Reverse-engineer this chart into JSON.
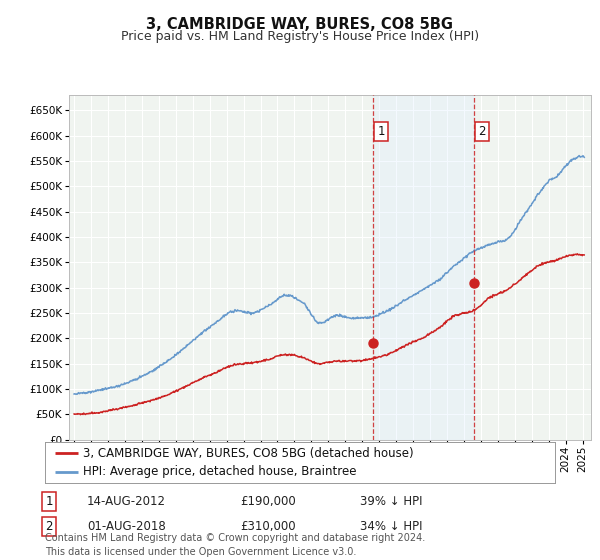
{
  "title": "3, CAMBRIDGE WAY, BURES, CO8 5BG",
  "subtitle": "Price paid vs. HM Land Registry's House Price Index (HPI)",
  "yticks": [
    0,
    50000,
    100000,
    150000,
    200000,
    250000,
    300000,
    350000,
    400000,
    450000,
    500000,
    550000,
    600000,
    650000
  ],
  "ylim": [
    0,
    680000
  ],
  "xlim_start": 1994.7,
  "xlim_end": 2025.5,
  "background_color": "#ffffff",
  "plot_bg_color": "#f0f4f0",
  "grid_color": "#ffffff",
  "hpi_color": "#6699cc",
  "price_color": "#cc2222",
  "annotation_shade_color": "#ddeeff",
  "sale1_x": 2012.617,
  "sale1_y": 190000,
  "sale1_label": "1",
  "sale1_date": "14-AUG-2012",
  "sale1_price": "£190,000",
  "sale1_hpi": "39% ↓ HPI",
  "sale2_x": 2018.583,
  "sale2_y": 310000,
  "sale2_label": "2",
  "sale2_date": "01-AUG-2018",
  "sale2_price": "£310,000",
  "sale2_hpi": "34% ↓ HPI",
  "legend_line1": "3, CAMBRIDGE WAY, BURES, CO8 5BG (detached house)",
  "legend_line2": "HPI: Average price, detached house, Braintree",
  "footnote": "Contains HM Land Registry data © Crown copyright and database right 2024.\nThis data is licensed under the Open Government Licence v3.0.",
  "title_fontsize": 10.5,
  "subtitle_fontsize": 9,
  "tick_fontsize": 7.5,
  "legend_fontsize": 8.5,
  "footnote_fontsize": 7
}
